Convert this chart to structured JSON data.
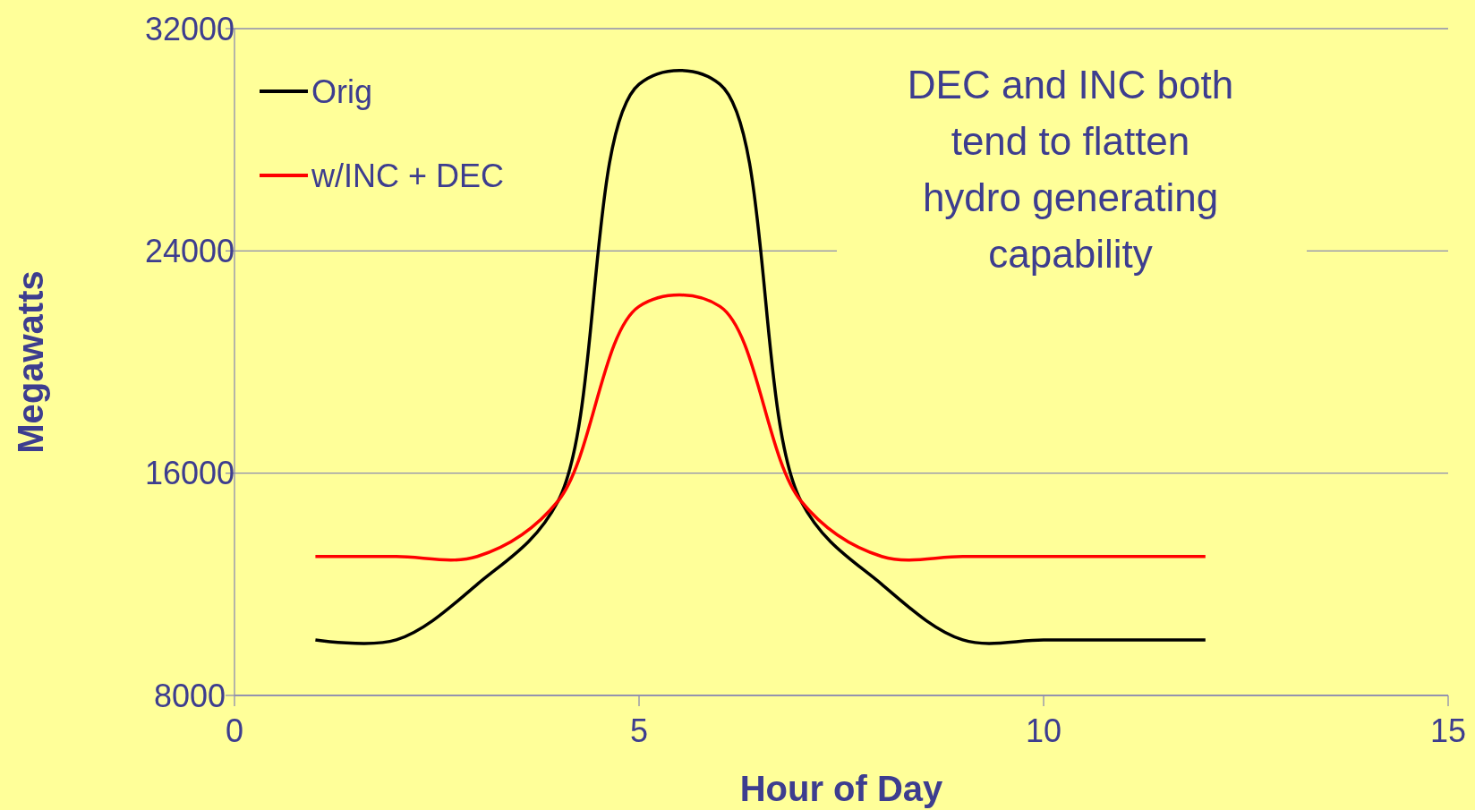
{
  "chart_data": {
    "type": "line",
    "xlabel": "Hour of Day",
    "ylabel": "Megawatts",
    "x": [
      1,
      2,
      3,
      4,
      5,
      6,
      7,
      8,
      9,
      10,
      11,
      12
    ],
    "series": [
      {
        "name": "Orig",
        "color": "#000000",
        "values": [
          10000,
          10000,
          12000,
          15000,
          30000,
          30000,
          15000,
          12000,
          10000,
          10000,
          10000,
          10000
        ]
      },
      {
        "name": "w/INC + DEC",
        "color": "#ff0000",
        "values": [
          13000,
          13000,
          13000,
          15000,
          22000,
          22000,
          15000,
          13000,
          13000,
          13000,
          13000,
          13000
        ]
      }
    ],
    "xlim": [
      0,
      15
    ],
    "xticks": [
      0,
      5,
      10,
      15
    ],
    "ylim": [
      8000,
      32000
    ],
    "yticks": [
      8000,
      16000,
      24000,
      32000
    ],
    "grid": "y",
    "legend": "top left",
    "marker": "none",
    "line_style": "solid",
    "annotations": [
      "DEC and INC both tend to flatten hydro generating capability"
    ]
  }
}
